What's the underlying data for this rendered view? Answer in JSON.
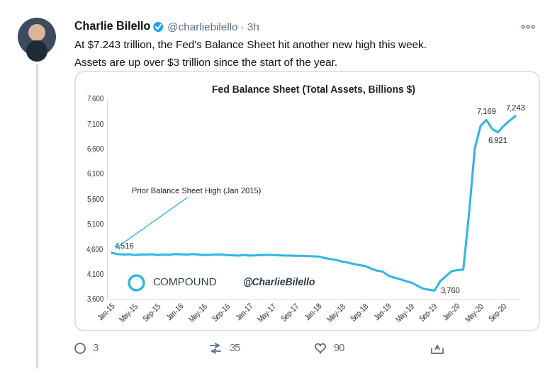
{
  "tweet": {
    "name": "Charlie Bilello",
    "handle": "@charliebilello · 3h",
    "text": [
      "At $7.243 trillion, the Fed's Balance Sheet hit another new high this week.",
      "Assets are up over $3 trillion since the start of the year."
    ],
    "replies": 3,
    "retweets": 35,
    "likes": 90
  },
  "chart_data": {
    "type": "line",
    "title": "Fed Balance Sheet (Total Assets, Billions $)",
    "categories": [
      "Jan-15",
      null,
      null,
      null,
      "May-15",
      null,
      null,
      null,
      "Sep-15",
      null,
      null,
      null,
      "Jan-16",
      null,
      null,
      null,
      "May-16",
      null,
      null,
      null,
      "Sep-16",
      null,
      null,
      null,
      "Jan-17",
      null,
      null,
      null,
      "May-17",
      null,
      null,
      null,
      "Sep-17",
      null,
      null,
      null,
      "Jan-18",
      null,
      null,
      null,
      "May-18",
      null,
      null,
      null,
      "Sep-18",
      null,
      null,
      null,
      "Jan-19",
      null,
      null,
      null,
      "May-19",
      null,
      null,
      null,
      "Sep-19",
      null,
      null,
      null,
      "Jan-20",
      null,
      null,
      null,
      "May-20",
      null,
      null,
      null,
      "Sep-20",
      null,
      null
    ],
    "values": [
      4516,
      4490,
      4480,
      4485,
      4470,
      4480,
      4480,
      4485,
      4470,
      4480,
      4475,
      4490,
      4485,
      4480,
      4490,
      4480,
      4470,
      4475,
      4480,
      4480,
      4470,
      4465,
      4460,
      4470,
      4460,
      4465,
      4470,
      4475,
      4470,
      4465,
      4460,
      4460,
      4455,
      4455,
      4450,
      4445,
      4440,
      4410,
      4390,
      4370,
      4340,
      4320,
      4290,
      4270,
      4250,
      4200,
      4160,
      4140,
      4060,
      4020,
      3990,
      3950,
      3920,
      3860,
      3800,
      3780,
      3760,
      3950,
      4050,
      4150,
      4170,
      4180,
      5300,
      6600,
      7050,
      7169,
      6990,
      6921,
      7050,
      7150,
      7243
    ],
    "value_labels": [
      "4,516",
      null,
      null,
      null,
      null,
      null,
      null,
      null,
      null,
      null,
      null,
      null,
      null,
      null,
      null,
      null,
      null,
      null,
      null,
      null,
      null,
      null,
      null,
      null,
      null,
      null,
      null,
      null,
      null,
      null,
      null,
      null,
      null,
      null,
      null,
      null,
      null,
      null,
      null,
      null,
      null,
      null,
      null,
      null,
      null,
      null,
      null,
      null,
      null,
      null,
      null,
      null,
      null,
      null,
      null,
      null,
      "3,760",
      null,
      null,
      null,
      null,
      null,
      null,
      null,
      null,
      "7,169",
      null,
      "6,921",
      null,
      null,
      "7,243"
    ],
    "color": "#33b5e5",
    "ylim": [
      3600,
      7600
    ],
    "yticks": [
      {
        "value": 3600,
        "label": "3,600"
      },
      {
        "value": 4100,
        "label": "4,100"
      },
      {
        "value": 4600,
        "label": "4,600"
      },
      {
        "value": 5100,
        "label": "5,100"
      },
      {
        "value": 5600,
        "label": "5,600"
      },
      {
        "value": 6100,
        "label": "6,100"
      },
      {
        "value": 6600,
        "label": "6,600"
      },
      {
        "value": 7100,
        "label": "7,100"
      },
      {
        "value": 7600,
        "label": "7,600"
      }
    ],
    "grid": false,
    "annotation": "Prior Balance Sheet High (Jan 2015)",
    "watermark": "COMPOUND",
    "credit": "@CharlieBilello"
  }
}
